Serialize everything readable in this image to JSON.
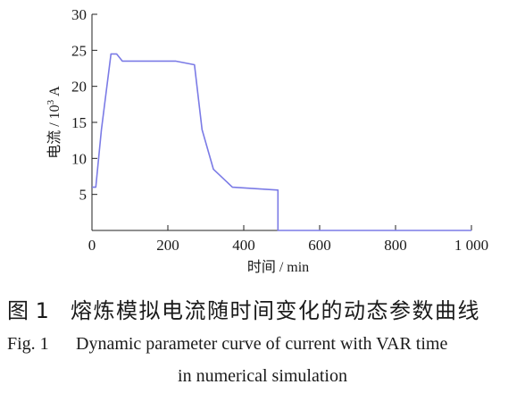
{
  "chart_data": {
    "type": "line",
    "xlabel": "时间 / min",
    "ylabel": "电流 / 10³ A",
    "ylabel_parts": {
      "main": "电流 / 10",
      "sup": "3",
      "unit": " A"
    },
    "xlim": [
      0,
      1000
    ],
    "ylim": [
      0,
      30
    ],
    "xticks": [
      0,
      200,
      400,
      600,
      800,
      1000
    ],
    "xtick_labels": [
      "0",
      "200",
      "400",
      "600",
      "800",
      "1 000"
    ],
    "yticks": [
      5,
      10,
      15,
      20,
      25,
      30
    ],
    "ytick_labels": [
      "5",
      "10",
      "15",
      "20",
      "25",
      "30"
    ],
    "grid": false,
    "line_color": "#7b7be6",
    "series": [
      {
        "x": [
          0,
          10,
          25,
          50,
          65,
          80,
          220,
          270,
          290,
          320,
          370,
          490,
          490,
          1000
        ],
        "y": [
          6,
          6,
          14,
          24.5,
          24.5,
          23.5,
          23.5,
          23,
          14,
          8.5,
          6,
          5.6,
          0,
          0
        ]
      }
    ]
  },
  "caption": {
    "cn_number": "图 1",
    "cn_title": "熔炼模拟电流随时间变化的动态参数曲线",
    "en_number": "Fig. 1",
    "en_title_line1": "Dynamic parameter curve of current with VAR time",
    "en_title_line2": "in numerical simulation"
  }
}
